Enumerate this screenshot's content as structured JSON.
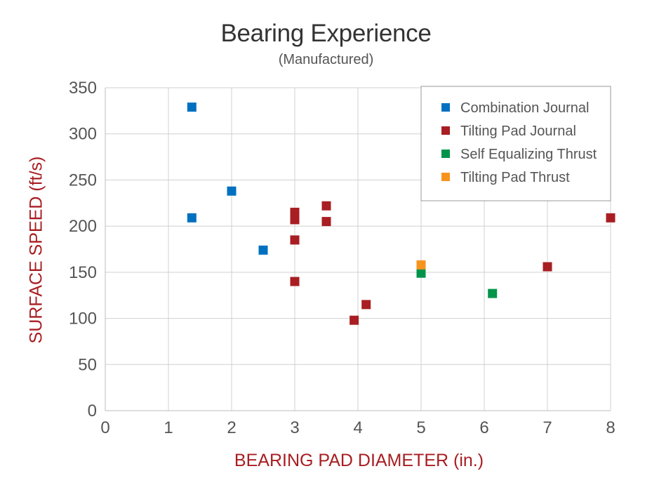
{
  "chart_data": {
    "type": "scatter",
    "title": "Bearing Experience",
    "subtitle": "(Manufactured)",
    "xlabel": "BEARING PAD DIAMETER (in.)",
    "ylabel": "SURFACE SPEED (ft/s)",
    "xlim": [
      0,
      8
    ],
    "ylim": [
      0,
      350
    ],
    "xticks": [
      0,
      1,
      2,
      3,
      4,
      5,
      6,
      7,
      8
    ],
    "yticks": [
      0,
      50,
      100,
      150,
      200,
      250,
      300,
      350
    ],
    "grid": true,
    "legend_position": "top-right",
    "series": [
      {
        "name": "Combination Journal",
        "color": "#0070c0",
        "points": [
          {
            "x": 1.37,
            "y": 329
          },
          {
            "x": 1.37,
            "y": 209
          },
          {
            "x": 2.0,
            "y": 238
          },
          {
            "x": 2.5,
            "y": 174
          }
        ]
      },
      {
        "name": "Tilting Pad Journal",
        "color": "#a81e22",
        "points": [
          {
            "x": 3.0,
            "y": 215
          },
          {
            "x": 3.0,
            "y": 207
          },
          {
            "x": 3.0,
            "y": 185
          },
          {
            "x": 3.0,
            "y": 140
          },
          {
            "x": 3.5,
            "y": 222
          },
          {
            "x": 3.5,
            "y": 205
          },
          {
            "x": 3.94,
            "y": 98
          },
          {
            "x": 4.13,
            "y": 115
          },
          {
            "x": 7.0,
            "y": 156
          },
          {
            "x": 8.0,
            "y": 209
          }
        ]
      },
      {
        "name": "Self Equalizing Thrust",
        "color": "#00944a",
        "points": [
          {
            "x": 5.0,
            "y": 149
          },
          {
            "x": 6.13,
            "y": 127
          }
        ]
      },
      {
        "name": "Tilting Pad Thrust",
        "color": "#f7941d",
        "points": [
          {
            "x": 5.0,
            "y": 158
          }
        ]
      }
    ]
  }
}
